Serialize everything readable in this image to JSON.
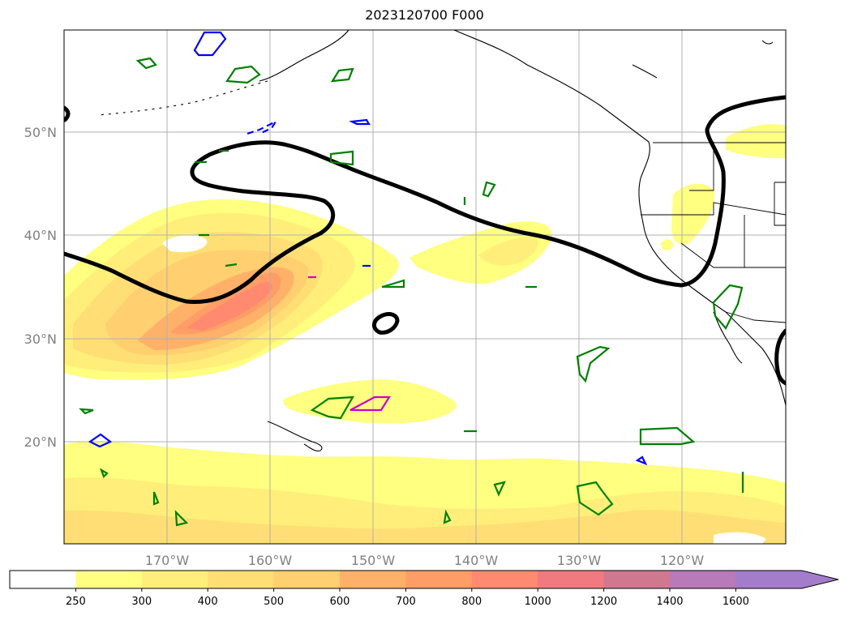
{
  "title": "2023120700 F000",
  "map": {
    "lat_labels": [
      "50°N",
      "40°N",
      "30°N",
      "20°N"
    ],
    "lon_labels": [
      "170°W",
      "160°W",
      "150°W",
      "140°W",
      "130°W",
      "120°W"
    ]
  },
  "colorbar": {
    "levels": [
      "250",
      "300",
      "400",
      "500",
      "600",
      "700",
      "800",
      "1000",
      "1200",
      "1400",
      "1600"
    ],
    "colors": [
      "#ffffff",
      "#ffff80",
      "#ffef7a",
      "#ffdf75",
      "#ffcf70",
      "#ffb16a",
      "#ff9d66",
      "#ff8a6f",
      "#f07a80",
      "#d07890",
      "#b87ab8",
      "#a47ccc"
    ],
    "extend": "max"
  },
  "styles": {
    "contour_green": "#008000",
    "contour_blue": "#0000ff",
    "contour_magenta": "#cc00cc",
    "jet_line": "#000000",
    "grid": "#b0b0b0"
  }
}
